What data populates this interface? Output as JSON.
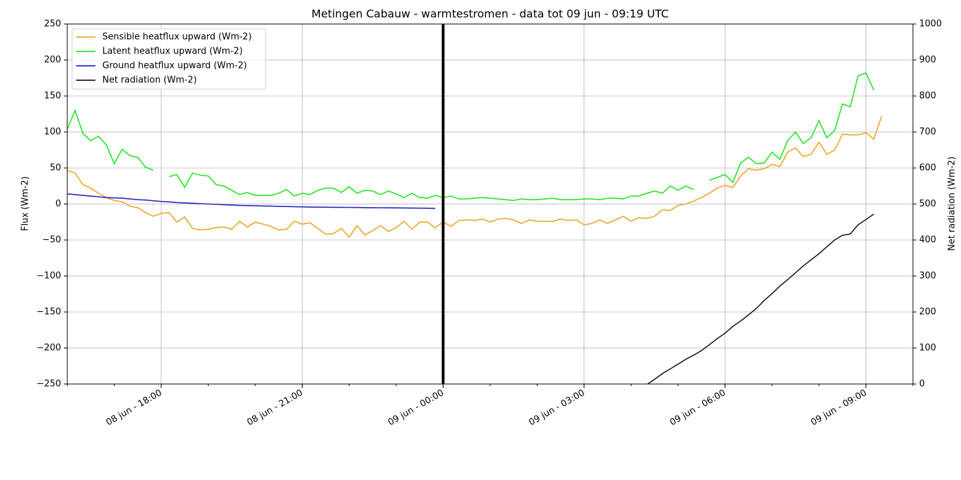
{
  "chart_data": {
    "type": "line",
    "title": "Metingen Cabauw - warmtestromen - data tot 09 jun - 09:19 UTC",
    "ylabel": "Flux (Wm-2)",
    "y2label": "Net radiation (Wm-2)",
    "x": [
      "08 jun - 16:00",
      "08 jun - 16:10",
      "08 jun - 16:20",
      "08 jun - 16:30",
      "08 jun - 16:40",
      "08 jun - 16:50",
      "08 jun - 17:00",
      "08 jun - 17:10",
      "08 jun - 17:20",
      "08 jun - 17:30",
      "08 jun - 17:40",
      "08 jun - 17:50",
      "08 jun - 18:00",
      "08 jun - 18:10",
      "08 jun - 18:20",
      "08 jun - 18:30",
      "08 jun - 18:40",
      "08 jun - 18:50",
      "08 jun - 19:00",
      "08 jun - 19:10",
      "08 jun - 19:20",
      "08 jun - 19:30",
      "08 jun - 19:40",
      "08 jun - 19:50",
      "08 jun - 20:00",
      "08 jun - 20:10",
      "08 jun - 20:20",
      "08 jun - 20:30",
      "08 jun - 20:40",
      "08 jun - 20:50",
      "08 jun - 21:00",
      "08 jun - 21:10",
      "08 jun - 21:20",
      "08 jun - 21:30",
      "08 jun - 21:40",
      "08 jun - 21:50",
      "08 jun - 22:00",
      "08 jun - 22:10",
      "08 jun - 22:20",
      "08 jun - 22:30",
      "08 jun - 22:40",
      "08 jun - 22:50",
      "08 jun - 23:00",
      "08 jun - 23:10",
      "08 jun - 23:20",
      "08 jun - 23:30",
      "08 jun - 23:40",
      "08 jun - 23:50",
      "09 jun - 00:00",
      "09 jun - 00:10",
      "09 jun - 00:20",
      "09 jun - 00:30",
      "09 jun - 00:40",
      "09 jun - 00:50",
      "09 jun - 01:00",
      "09 jun - 01:10",
      "09 jun - 01:20",
      "09 jun - 01:30",
      "09 jun - 01:40",
      "09 jun - 01:50",
      "09 jun - 02:00",
      "09 jun - 02:10",
      "09 jun - 02:20",
      "09 jun - 02:30",
      "09 jun - 02:40",
      "09 jun - 02:50",
      "09 jun - 03:00",
      "09 jun - 03:10",
      "09 jun - 03:20",
      "09 jun - 03:30",
      "09 jun - 03:40",
      "09 jun - 03:50",
      "09 jun - 04:00",
      "09 jun - 04:10",
      "09 jun - 04:20",
      "09 jun - 04:30",
      "09 jun - 04:40",
      "09 jun - 04:50",
      "09 jun - 05:00",
      "09 jun - 05:10",
      "09 jun - 05:20",
      "09 jun - 05:30",
      "09 jun - 05:40",
      "09 jun - 05:50",
      "09 jun - 06:00",
      "09 jun - 06:10",
      "09 jun - 06:20",
      "09 jun - 06:30",
      "09 jun - 06:40",
      "09 jun - 06:50",
      "09 jun - 07:00",
      "09 jun - 07:10",
      "09 jun - 07:20",
      "09 jun - 07:30",
      "09 jun - 07:40",
      "09 jun - 07:50",
      "09 jun - 08:00",
      "09 jun - 08:10",
      "09 jun - 08:20",
      "09 jun - 08:30",
      "09 jun - 08:40",
      "09 jun - 08:50",
      "09 jun - 09:00",
      "09 jun - 09:10",
      "09 jun - 09:20"
    ],
    "series": [
      {
        "name": "Sensible heatflux upward (Wm-2)",
        "color": "#eba626",
        "values": [
          47,
          43,
          27,
          22,
          15,
          9,
          5,
          3,
          -3,
          -5,
          -12,
          -17,
          -13,
          -12,
          -25,
          -18,
          -34,
          -36,
          -35,
          -33,
          -32,
          -35,
          -24,
          -32,
          -25,
          -28,
          -31,
          -36,
          -35,
          -24,
          -28,
          -26,
          -34,
          -42,
          -41,
          -34,
          -46,
          -30,
          -43,
          -37,
          -30,
          -38,
          -33,
          -24,
          -35,
          -25,
          -25,
          -33,
          -25,
          -31,
          -23,
          -22,
          -23,
          -21,
          -25,
          -21,
          -20,
          -22,
          -27,
          -22,
          -24,
          -24,
          -24,
          -21,
          -23,
          -22,
          -29,
          -27,
          -22,
          -27,
          -22,
          -17,
          -24,
          -19,
          -20,
          -17,
          -8,
          -9,
          -2,
          0,
          4,
          9,
          15,
          22,
          26,
          23,
          39,
          49,
          47,
          49,
          55,
          52,
          72,
          78,
          66,
          69,
          86,
          69,
          75,
          97,
          96,
          96,
          99,
          90,
          122
        ]
      },
      {
        "name": "Latent heatflux upward (Wm-2)",
        "color": "#22e622",
        "values": [
          104,
          130,
          98,
          88,
          94,
          82,
          56,
          76,
          67,
          65,
          51,
          47,
          null,
          38,
          41,
          23,
          43,
          40,
          39,
          27,
          25,
          19,
          13,
          16,
          12,
          12,
          12,
          15,
          20,
          11,
          15,
          13,
          19,
          22,
          22,
          16,
          24,
          15,
          19,
          18,
          13,
          18,
          14,
          9,
          15,
          9,
          8,
          12,
          9,
          11,
          7,
          7,
          8,
          9,
          8,
          7,
          6,
          5,
          7,
          6,
          6,
          7,
          8,
          6,
          6,
          6,
          7,
          7,
          6,
          8,
          8,
          7,
          11,
          11,
          15,
          18,
          15,
          25,
          19,
          25,
          20,
          null,
          33,
          37,
          41,
          30,
          57,
          65,
          56,
          57,
          72,
          62,
          88,
          100,
          84,
          92,
          116,
          92,
          102,
          139,
          135,
          178,
          182,
          158,
          null
        ]
      },
      {
        "name": "Ground heatflux upward (Wm-2)",
        "color": "#2424c8",
        "values": [
          14,
          13,
          12,
          11,
          10,
          9,
          8.5,
          8,
          7,
          6,
          5.5,
          4.5,
          3.5,
          3,
          2,
          1.5,
          1,
          0.5,
          0,
          -0.5,
          -1,
          -1.5,
          -2,
          -2.2,
          -2.5,
          -2.8,
          -3,
          -3.2,
          -3.5,
          -3.7,
          -4,
          -4.2,
          -4.4,
          -4.5,
          -4.6,
          -4.7,
          -4.8,
          -4.9,
          -5,
          -5.1,
          -5.2,
          -5.3,
          -5.4,
          -5.5,
          -5.6,
          -5.8,
          -5.9,
          -6,
          null,
          null,
          null,
          null,
          null,
          null,
          null,
          null,
          null,
          null,
          null,
          null,
          null,
          null,
          null,
          null,
          null,
          null,
          null,
          null,
          null,
          null,
          null,
          null,
          null,
          null,
          null,
          null,
          null,
          null,
          null,
          null,
          null,
          null,
          null,
          null,
          null,
          null,
          null,
          null,
          null,
          null,
          null,
          null,
          null,
          null,
          null,
          null,
          null,
          null,
          null,
          null,
          null,
          null,
          null,
          null,
          null
        ]
      },
      {
        "name": "Net radiation (Wm-2)",
        "color": "#1a1a1a",
        "axis": "y2",
        "values": [
          null,
          null,
          null,
          null,
          null,
          null,
          null,
          null,
          null,
          null,
          null,
          null,
          null,
          null,
          null,
          null,
          null,
          null,
          null,
          null,
          null,
          null,
          null,
          null,
          null,
          null,
          null,
          null,
          null,
          null,
          null,
          null,
          null,
          null,
          null,
          null,
          null,
          null,
          null,
          null,
          null,
          null,
          null,
          null,
          null,
          null,
          null,
          null,
          null,
          null,
          null,
          null,
          null,
          null,
          null,
          null,
          null,
          null,
          null,
          null,
          null,
          null,
          null,
          null,
          null,
          null,
          null,
          null,
          null,
          null,
          null,
          null,
          null,
          null,
          -2,
          13,
          29,
          42,
          55,
          69,
          80,
          93,
          109,
          126,
          141,
          160,
          175,
          192,
          210,
          232,
          251,
          272,
          290,
          309,
          328,
          345,
          362,
          381,
          400,
          413,
          417,
          442,
          457,
          472,
          null
        ]
      }
    ],
    "xlim": [
      "08 jun - 16:00",
      "09 jun - 10:00"
    ],
    "xticks": [
      "08 jun - 18:00",
      "08 jun - 21:00",
      "09 jun - 00:00",
      "09 jun - 03:00",
      "09 jun - 06:00",
      "09 jun - 09:00"
    ],
    "ylim": [
      -250,
      250
    ],
    "yticks": [
      {
        "value": -250,
        "label": "−250"
      },
      {
        "value": -200,
        "label": "−200"
      },
      {
        "value": -150,
        "label": "−150"
      },
      {
        "value": -100,
        "label": "−100"
      },
      {
        "value": -50,
        "label": "−50"
      },
      0,
      50,
      100,
      150,
      200,
      250
    ],
    "y2lim": [
      0,
      1000
    ],
    "y2ticks": [
      0,
      100,
      200,
      300,
      400,
      500,
      600,
      700,
      800,
      900,
      1000
    ],
    "vline": "09 jun - 00:00",
    "grid": true,
    "legend": "upper-left"
  }
}
